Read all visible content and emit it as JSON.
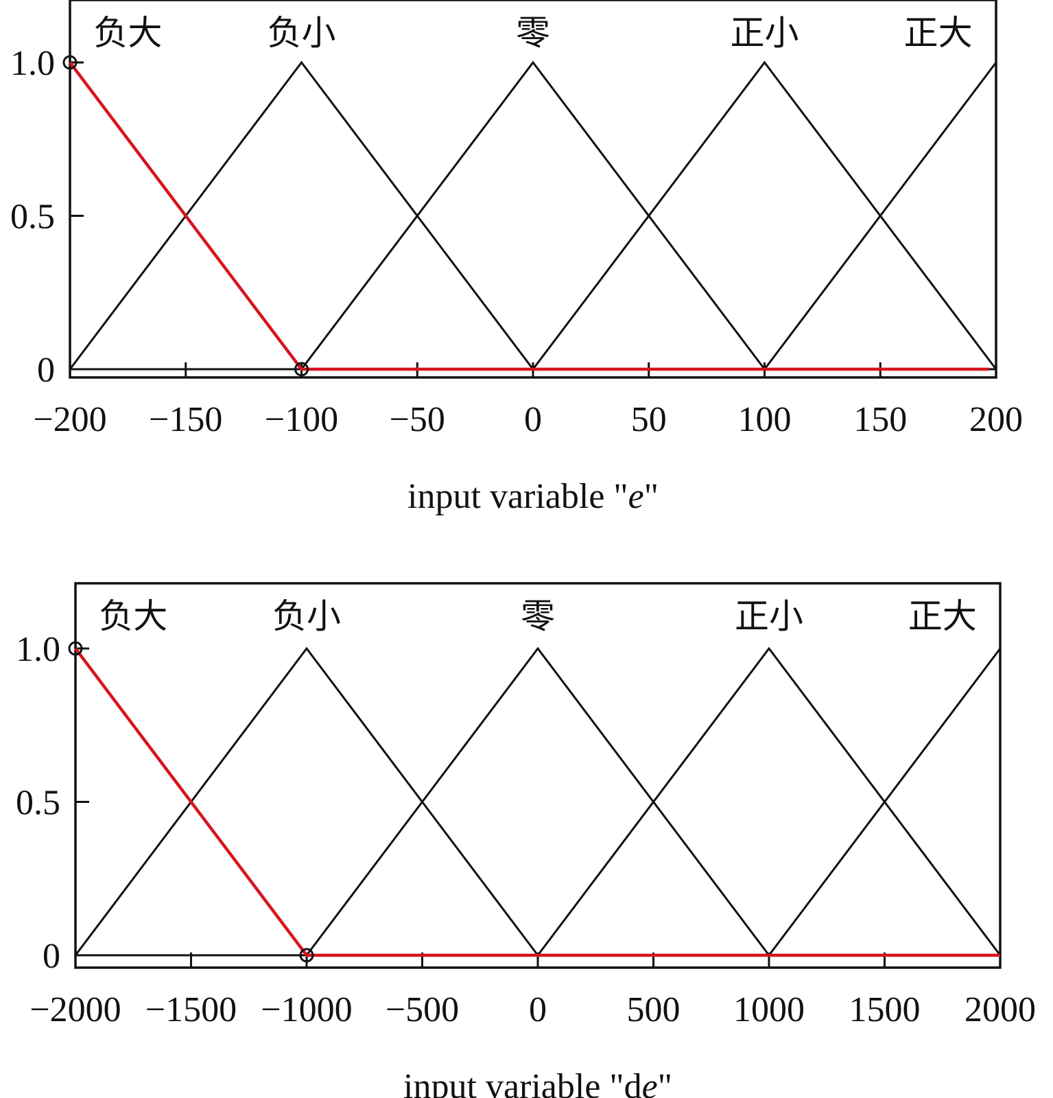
{
  "chart_data": [
    {
      "type": "line",
      "title": "",
      "xlabel": "input variable \"e\"",
      "xlabel_parts": [
        {
          "text": "input variable \"",
          "italic": false
        },
        {
          "text": "e",
          "italic": true
        },
        {
          "text": "\"",
          "italic": false
        }
      ],
      "ylabel": "",
      "xlim": [
        -200,
        200
      ],
      "ylim": [
        0,
        1.2
      ],
      "xticks": [
        -200,
        -150,
        -100,
        -50,
        0,
        50,
        100,
        150,
        200
      ],
      "xtick_labels": [
        "−200",
        "−150",
        "−100",
        "−50",
        "0",
        "50",
        "100",
        "150",
        "200"
      ],
      "yticks": [
        0,
        0.5,
        1.0
      ],
      "ytick_labels": [
        "0",
        "0.5",
        "1.0"
      ],
      "membership_functions": [
        {
          "label": "负大",
          "x": [
            -200,
            -100
          ],
          "y": [
            1,
            0
          ],
          "label_x": -175
        },
        {
          "label": "负小",
          "x": [
            -200,
            -100,
            0
          ],
          "y": [
            0,
            1,
            0
          ],
          "label_x": -100
        },
        {
          "label": "零",
          "x": [
            -100,
            0,
            100
          ],
          "y": [
            0,
            1,
            0
          ],
          "label_x": 0
        },
        {
          "label": "正小",
          "x": [
            0,
            100,
            200
          ],
          "y": [
            0,
            1,
            0
          ],
          "label_x": 100
        },
        {
          "label": "正大",
          "x": [
            100,
            200
          ],
          "y": [
            0,
            1
          ],
          "label_x": 175
        }
      ],
      "highlight": {
        "color": "#d7141e",
        "x": [
          -200,
          -100,
          197
        ],
        "y": [
          1,
          0,
          0
        ],
        "markers": [
          [
            -200,
            1
          ],
          [
            -100,
            0
          ]
        ]
      },
      "grid": false,
      "line_color": "#111111"
    },
    {
      "type": "line",
      "title": "",
      "xlabel": "input variable \"de\"",
      "xlabel_parts": [
        {
          "text": "input variable \"d",
          "italic": false
        },
        {
          "text": "e",
          "italic": true
        },
        {
          "text": "\"",
          "italic": false
        }
      ],
      "ylabel": "",
      "xlim": [
        -2000,
        2000
      ],
      "ylim": [
        0,
        1.2
      ],
      "xticks": [
        -2000,
        -1500,
        -1000,
        -500,
        0,
        500,
        1000,
        1500,
        2000
      ],
      "xtick_labels": [
        "−2000",
        "−1500",
        "−1000",
        "−500",
        "0",
        "500",
        "1000",
        "1500",
        "2000"
      ],
      "yticks": [
        0,
        0.5,
        1.0
      ],
      "ytick_labels": [
        "0",
        "0.5",
        "1.0"
      ],
      "membership_functions": [
        {
          "label": "负大",
          "x": [
            -2000,
            -1000
          ],
          "y": [
            1,
            0
          ],
          "label_x": -1750
        },
        {
          "label": "负小",
          "x": [
            -2000,
            -1000,
            0
          ],
          "y": [
            0,
            1,
            0
          ],
          "label_x": -1000
        },
        {
          "label": "零",
          "x": [
            -1000,
            0,
            1000
          ],
          "y": [
            0,
            1,
            0
          ],
          "label_x": 0
        },
        {
          "label": "正小",
          "x": [
            0,
            1000,
            2000
          ],
          "y": [
            0,
            1,
            0
          ],
          "label_x": 1000
        },
        {
          "label": "正大",
          "x": [
            1000,
            2000
          ],
          "y": [
            0,
            1
          ],
          "label_x": 1750
        }
      ],
      "highlight": {
        "color": "#d7141e",
        "x": [
          -2000,
          -1000,
          2000
        ],
        "y": [
          1,
          0,
          0
        ],
        "markers": [
          [
            -2000,
            1
          ],
          [
            -1000,
            0
          ]
        ]
      },
      "grid": false,
      "line_color": "#111111"
    }
  ]
}
